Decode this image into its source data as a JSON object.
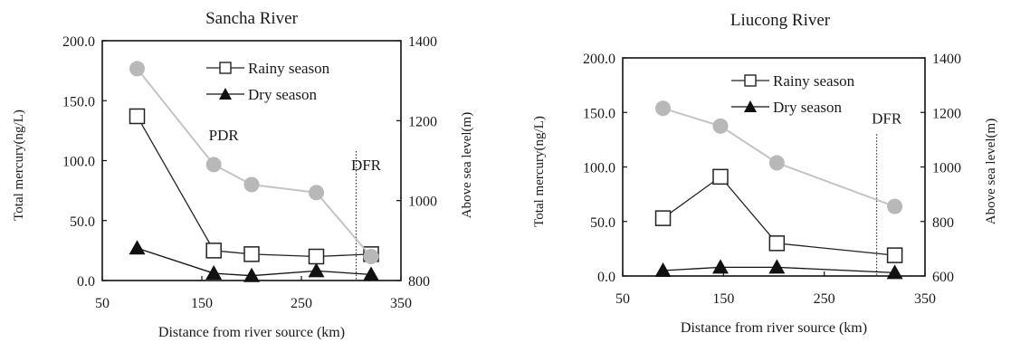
{
  "colors": {
    "axis": "#111111",
    "rainy": "#222222",
    "dry": "#111111",
    "elevation": "#b8b8b8",
    "elevation_line": "#c4c4c4",
    "marker_line": "#333333"
  },
  "chart_data": [
    {
      "type": "line",
      "title": "Sancha River",
      "xlabel": "Distance from river source (km)",
      "ylabel": "Total mercury(ng/L)",
      "y2label": "Above sea level(m)",
      "xlim": [
        50,
        350
      ],
      "ylim": [
        0,
        200
      ],
      "y2lim": [
        800,
        1400
      ],
      "xticks": [
        "50",
        "150",
        "250",
        "350"
      ],
      "yticks": [
        "0.0",
        "50.0",
        "100.0",
        "150.0",
        "200.0"
      ],
      "y2ticks": [
        "800",
        "1000",
        "1200",
        "1400"
      ],
      "legend_position": "top-right",
      "series": [
        {
          "name": "Rainy season",
          "marker": "open-square",
          "axis": "left",
          "x": [
            85,
            162,
            200,
            265,
            320
          ],
          "values": [
            137,
            25,
            22,
            20,
            22
          ]
        },
        {
          "name": "Dry season",
          "marker": "filled-triangle",
          "axis": "left",
          "x": [
            85,
            162,
            200,
            265,
            320
          ],
          "values": [
            27,
            6,
            4,
            8,
            5
          ]
        },
        {
          "marker": "grey-circle",
          "axis": "right",
          "x": [
            85,
            162,
            200,
            265,
            320
          ],
          "values": [
            1330,
            1090,
            1040,
            1020,
            860
          ]
        }
      ],
      "annotations": [
        {
          "text": "PDR",
          "x": 172,
          "y": 117
        },
        {
          "text": "DFR",
          "x": 315,
          "y": 92
        }
      ],
      "vline": {
        "x": 305,
        "label": "DFR"
      }
    },
    {
      "type": "line",
      "title": "Liucong River",
      "xlabel": "Distance from river source (km)",
      "ylabel": "Total mercury(ng/L)",
      "y2label": "Above sea level(m)",
      "xlim": [
        50,
        350
      ],
      "ylim": [
        0,
        200
      ],
      "y2lim": [
        600,
        1400
      ],
      "xticks": [
        "50",
        "150",
        "250",
        "350"
      ],
      "yticks": [
        "0.0",
        "50.0",
        "100.0",
        "150.0",
        "200.0"
      ],
      "y2ticks": [
        "600",
        "800",
        "1000",
        "1200",
        "1400"
      ],
      "legend_position": "top-right",
      "series": [
        {
          "name": "Rainy season",
          "marker": "open-square",
          "axis": "left",
          "x": [
            90,
            147,
            203,
            320
          ],
          "values": [
            53,
            91,
            30,
            19
          ]
        },
        {
          "name": "Dry season",
          "marker": "filled-triangle",
          "axis": "left",
          "x": [
            90,
            147,
            203,
            320
          ],
          "values": [
            5,
            8,
            8,
            3
          ]
        },
        {
          "marker": "grey-circle",
          "axis": "right",
          "x": [
            90,
            147,
            203,
            320
          ],
          "values": [
            1215,
            1150,
            1015,
            855
          ]
        }
      ],
      "annotations": [
        {
          "text": "DFR",
          "x": 312,
          "y": 140
        }
      ],
      "vline": {
        "x": 302,
        "label": "DFR"
      }
    }
  ]
}
